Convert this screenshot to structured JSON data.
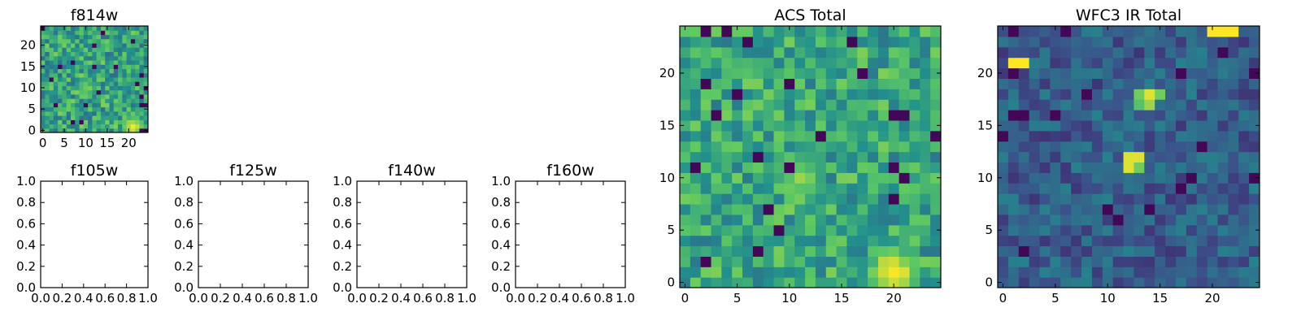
{
  "palette": [
    "#440154",
    "#3b528b",
    "#21908c",
    "#5dc863",
    "#fde725"
  ],
  "chart_data": [
    {
      "id": "f814w",
      "type": "heatmap",
      "title": "f814w",
      "xlim": [
        -0.5,
        24.5
      ],
      "ylim": [
        -0.5,
        24.5
      ],
      "xticks": [
        0,
        5,
        10,
        15,
        20
      ],
      "xtick_labels": [
        "0",
        "5",
        "10",
        "15",
        "20"
      ],
      "yticks": [
        0,
        5,
        10,
        15,
        20
      ],
      "ytick_labels": [
        "0",
        "5",
        "10",
        "15",
        "20"
      ],
      "grid_size": 25,
      "origin": "lower",
      "colormap": "viridis",
      "bright_spots": [
        {
          "x": 10,
          "y": 10,
          "level": 0.78
        },
        {
          "x": 21,
          "y": 1,
          "level": 0.98
        }
      ],
      "base_level": 0.58,
      "noise": 0.22
    },
    {
      "id": "acs",
      "type": "heatmap",
      "title": "ACS Total",
      "xlim": [
        -0.5,
        24.5
      ],
      "ylim": [
        -0.5,
        24.5
      ],
      "xticks": [
        0,
        5,
        10,
        15,
        20
      ],
      "xtick_labels": [
        "0",
        "5",
        "10",
        "15",
        "20"
      ],
      "yticks": [
        0,
        5,
        10,
        15,
        20
      ],
      "ytick_labels": [
        "0",
        "5",
        "10",
        "15",
        "20"
      ],
      "grid_size": 25,
      "origin": "lower",
      "colormap": "viridis",
      "bright_spots": [
        {
          "x": 11,
          "y": 10,
          "level": 0.82
        },
        {
          "x": 20,
          "y": 1,
          "level": 0.98
        }
      ],
      "base_level": 0.6,
      "noise": 0.2
    },
    {
      "id": "wfc3",
      "type": "heatmap",
      "title": "WFC3 IR Total",
      "xlim": [
        -0.5,
        24.5
      ],
      "ylim": [
        -0.5,
        24.5
      ],
      "xticks": [
        0,
        5,
        10,
        15,
        20
      ],
      "xtick_labels": [
        "0",
        "5",
        "10",
        "15",
        "20"
      ],
      "yticks": [
        0,
        5,
        10,
        15,
        20
      ],
      "ytick_labels": [
        "0",
        "5",
        "10",
        "15",
        "20"
      ],
      "grid_size": 25,
      "origin": "lower",
      "colormap": "viridis",
      "bright_pixels": [
        {
          "x": 20,
          "y": 24,
          "level": 1.0
        },
        {
          "x": 21,
          "y": 24,
          "level": 1.0
        },
        {
          "x": 22,
          "y": 24,
          "level": 1.0
        },
        {
          "x": 1,
          "y": 21,
          "level": 1.0
        },
        {
          "x": 2,
          "y": 21,
          "level": 1.0
        },
        {
          "x": 13,
          "y": 18,
          "level": 0.78
        },
        {
          "x": 14,
          "y": 18,
          "level": 0.95
        },
        {
          "x": 15,
          "y": 18,
          "level": 0.78
        },
        {
          "x": 13,
          "y": 17,
          "level": 0.72
        },
        {
          "x": 14,
          "y": 17,
          "level": 0.85
        },
        {
          "x": 12,
          "y": 12,
          "level": 0.95
        },
        {
          "x": 13,
          "y": 12,
          "level": 0.95
        },
        {
          "x": 12,
          "y": 11,
          "level": 0.95
        },
        {
          "x": 13,
          "y": 11,
          "level": 0.78
        }
      ],
      "base_level": 0.3,
      "noise": 0.14
    },
    {
      "id": "f105w",
      "type": "heatmap",
      "title": "f105w",
      "empty": true,
      "xlim": [
        0,
        1
      ],
      "ylim": [
        0,
        1
      ],
      "xticks": [
        0,
        0.2,
        0.4,
        0.6,
        0.8,
        1.0
      ],
      "xtick_labels": [
        "0.0",
        "0.2",
        "0.4",
        "0.6",
        "0.8",
        "1.0"
      ],
      "yticks": [
        0,
        0.2,
        0.4,
        0.6,
        0.8,
        1.0
      ],
      "ytick_labels": [
        "0.0",
        "0.2",
        "0.4",
        "0.6",
        "0.8",
        "1.0"
      ]
    },
    {
      "id": "f125w",
      "type": "heatmap",
      "title": "f125w",
      "empty": true,
      "xlim": [
        0,
        1
      ],
      "ylim": [
        0,
        1
      ],
      "xticks": [
        0,
        0.2,
        0.4,
        0.6,
        0.8,
        1.0
      ],
      "xtick_labels": [
        "0.0",
        "0.2",
        "0.4",
        "0.6",
        "0.8",
        "1.0"
      ],
      "yticks": [
        0,
        0.2,
        0.4,
        0.6,
        0.8,
        1.0
      ],
      "ytick_labels": [
        "0.0",
        "0.2",
        "0.4",
        "0.6",
        "0.8",
        "1.0"
      ]
    },
    {
      "id": "f140w",
      "type": "heatmap",
      "title": "f140w",
      "empty": true,
      "xlim": [
        0,
        1
      ],
      "ylim": [
        0,
        1
      ],
      "xticks": [
        0,
        0.2,
        0.4,
        0.6,
        0.8,
        1.0
      ],
      "xtick_labels": [
        "0.0",
        "0.2",
        "0.4",
        "0.6",
        "0.8",
        "1.0"
      ],
      "yticks": [
        0,
        0.2,
        0.4,
        0.6,
        0.8,
        1.0
      ],
      "ytick_labels": [
        "0.0",
        "0.2",
        "0.4",
        "0.6",
        "0.8",
        "1.0"
      ]
    },
    {
      "id": "f160w",
      "type": "heatmap",
      "title": "f160w",
      "empty": true,
      "xlim": [
        0,
        1
      ],
      "ylim": [
        0,
        1
      ],
      "xticks": [
        0,
        0.2,
        0.4,
        0.6,
        0.8,
        1.0
      ],
      "xtick_labels": [
        "0.0",
        "0.2",
        "0.4",
        "0.6",
        "0.8",
        "1.0"
      ],
      "yticks": [
        0,
        0.2,
        0.4,
        0.6,
        0.8,
        1.0
      ],
      "ytick_labels": [
        "0.0",
        "0.2",
        "0.4",
        "0.6",
        "0.8",
        "1.0"
      ]
    }
  ]
}
